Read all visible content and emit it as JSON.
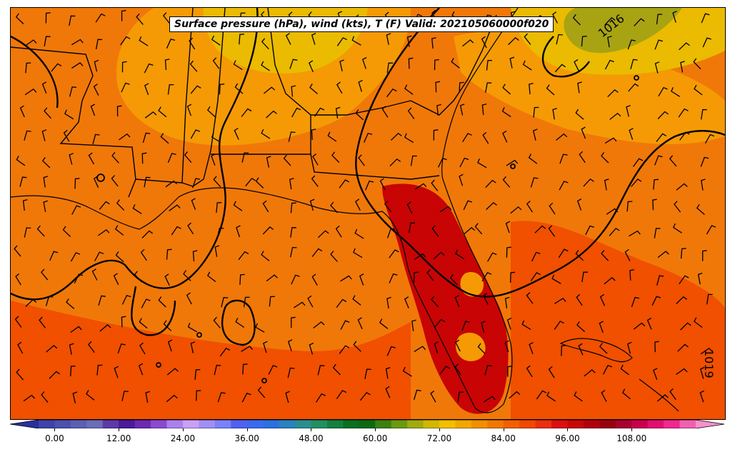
{
  "title": "Surface pressure (hPa), wind (kts), T (F) Valid: 202105060000f020",
  "isobar_labels": [
    "1016",
    "1019"
  ],
  "colorbar": {
    "ticks": [
      "0.00",
      "12.00",
      "24.00",
      "36.00",
      "48.00",
      "60.00",
      "72.00",
      "84.00",
      "96.00",
      "108.00"
    ],
    "tick_values": [
      0,
      12,
      24,
      36,
      48,
      60,
      72,
      84,
      96,
      108
    ],
    "min": -6,
    "max": 123,
    "step": 3,
    "colors": [
      "#2b2fa0",
      "#3d43a8",
      "#4b51ad",
      "#5a5fb3",
      "#6a6db8",
      "#5b3aa8",
      "#4a1a9a",
      "#6a2ab2",
      "#8a4ad0",
      "#aa80ee",
      "#c9a0f8",
      "#a090f5",
      "#7a82f8",
      "#5060f0",
      "#3a6af0",
      "#2a70e0",
      "#2a80c0",
      "#2a8e90",
      "#209060",
      "#158040",
      "#0a7020",
      "#0a6a10",
      "#3a8010",
      "#6a9a10",
      "#a0aa10",
      "#d0b800",
      "#f0c000",
      "#f0a800",
      "#f09000",
      "#f07800",
      "#f06000",
      "#f04800",
      "#e83010",
      "#d81010",
      "#c80808",
      "#b00010",
      "#980010",
      "#a80030",
      "#c80050",
      "#e01070",
      "#f02890",
      "#f060b0",
      "#f890cc"
    ]
  },
  "field_colors": {
    "hot_core": "#c80404",
    "warm_red": "#f05000",
    "orange": "#f07808",
    "light_orange": "#f59a05",
    "yellow": "#eabb00",
    "olive": "#a8a313"
  }
}
